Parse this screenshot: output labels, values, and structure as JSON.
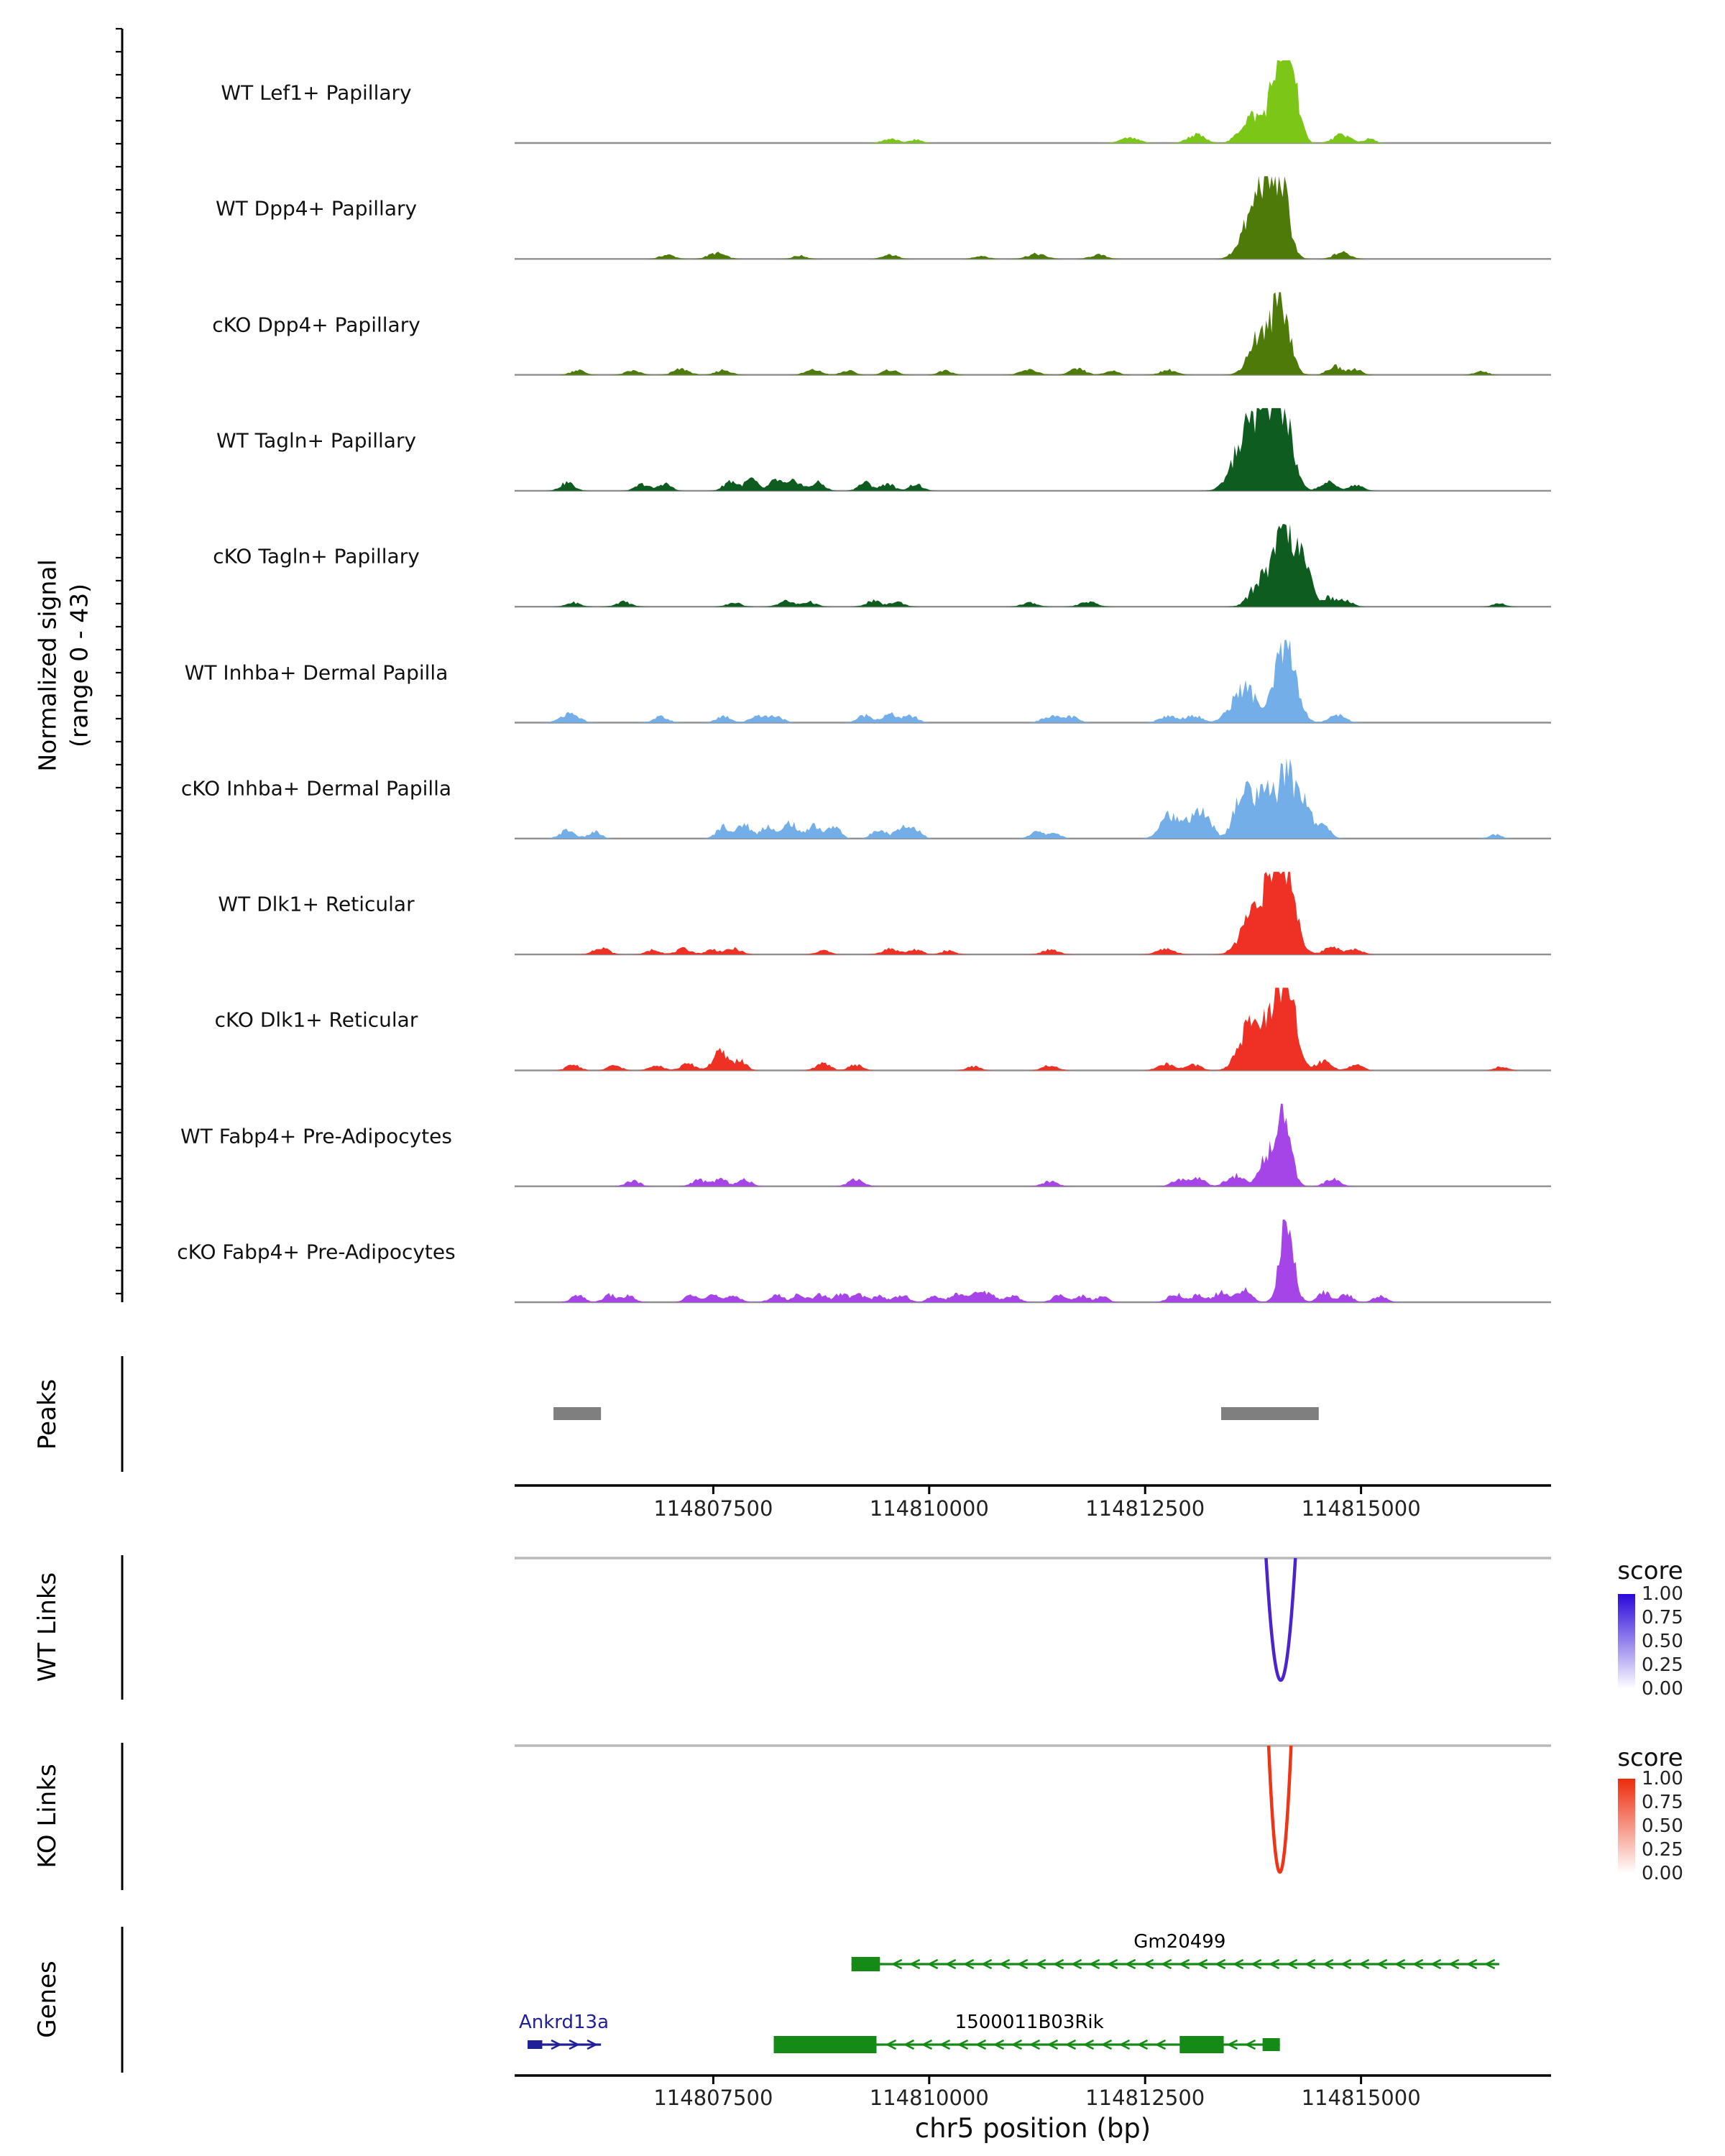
{
  "yaxis": {
    "line1": "Normalized signal",
    "line2": "(range 0 - 43)"
  },
  "sections": {
    "peaks": "Peaks",
    "wt_links": "WT Links",
    "ko_links": "KO Links",
    "genes": "Genes"
  },
  "xaxis": {
    "label": "chr5 position (bp)",
    "domain": [
      114805200,
      114817200
    ],
    "ticks": [
      114807500,
      114810000,
      114812500,
      114815000
    ]
  },
  "legend": {
    "title": "score",
    "tick_labels": [
      "1.00",
      "0.75",
      "0.50",
      "0.25",
      "0.00"
    ],
    "wt_high_color": "#2A08DA",
    "ko_high_color": "#ED2B0C",
    "low_color": "#FFFFFF"
  },
  "chart_data": {
    "type": "area",
    "description": "Genome coverage tracks (scATAC-seq style) with peaks, WT/KO co-accessibility links and gene models",
    "region": "chr5:114805200-114817200",
    "signal_range": [
      0,
      43
    ],
    "peaks_color": "#7F7F7F",
    "peaks": [
      [
        114805650,
        114806200
      ],
      [
        114813380,
        114814510
      ]
    ],
    "links": {
      "wt": {
        "anchor1": 114813900,
        "anchor2": 114814240,
        "score": 1.0,
        "depth": 170,
        "color": "#4B24CE"
      },
      "ko": {
        "anchor1": 114813930,
        "anchor2": 114814190,
        "score": 1.0,
        "depth": 176,
        "color": "#F03418"
      }
    },
    "tracks": [
      {
        "label": "WT Lef1+ Papillary",
        "color": "#7CC618",
        "bumps": [
          [
            114809550,
            130,
            0.05
          ],
          [
            114809850,
            100,
            0.04
          ],
          [
            114812320,
            150,
            0.06
          ],
          [
            114813090,
            140,
            0.1
          ],
          [
            114813730,
            170,
            0.32
          ],
          [
            114814060,
            150,
            1.0
          ],
          [
            114814210,
            110,
            0.62
          ],
          [
            114814780,
            140,
            0.1
          ],
          [
            114815100,
            90,
            0.05
          ]
        ]
      },
      {
        "label": "WT Dpp4+ Papillary",
        "color": "#4E7A0A",
        "bumps": [
          [
            114806970,
            120,
            0.05
          ],
          [
            114807540,
            140,
            0.07
          ],
          [
            114808500,
            110,
            0.04
          ],
          [
            114809550,
            120,
            0.05
          ],
          [
            114810600,
            110,
            0.04
          ],
          [
            114811240,
            150,
            0.06
          ],
          [
            114811960,
            130,
            0.05
          ],
          [
            114813700,
            160,
            0.4
          ],
          [
            114813870,
            120,
            0.78
          ],
          [
            114814070,
            130,
            0.95
          ],
          [
            114814780,
            130,
            0.08
          ]
        ]
      },
      {
        "label": "cKO Dpp4+ Papillary",
        "color": "#4E7A0A",
        "bumps": [
          [
            114805930,
            110,
            0.06
          ],
          [
            114806570,
            120,
            0.05
          ],
          [
            114807130,
            130,
            0.07
          ],
          [
            114807620,
            120,
            0.06
          ],
          [
            114808660,
            130,
            0.06
          ],
          [
            114809060,
            110,
            0.05
          ],
          [
            114809550,
            120,
            0.06
          ],
          [
            114810190,
            110,
            0.05
          ],
          [
            114811160,
            140,
            0.06
          ],
          [
            114811720,
            130,
            0.07
          ],
          [
            114812120,
            110,
            0.05
          ],
          [
            114812770,
            130,
            0.06
          ],
          [
            114813810,
            160,
            0.45
          ],
          [
            114814070,
            140,
            0.92
          ],
          [
            114814700,
            120,
            0.1
          ],
          [
            114814940,
            100,
            0.07
          ],
          [
            114816390,
            100,
            0.05
          ]
        ]
      },
      {
        "label": "WT Tagln+ Papillary",
        "color": "#0E5C20",
        "bumps": [
          [
            114805810,
            110,
            0.1
          ],
          [
            114806680,
            110,
            0.08
          ],
          [
            114806940,
            100,
            0.09
          ],
          [
            114807700,
            110,
            0.12
          ],
          [
            114807940,
            100,
            0.14
          ],
          [
            114808230,
            110,
            0.13
          ],
          [
            114808450,
            100,
            0.12
          ],
          [
            114808710,
            110,
            0.1
          ],
          [
            114809260,
            110,
            0.1
          ],
          [
            114809520,
            100,
            0.09
          ],
          [
            114809840,
            110,
            0.08
          ],
          [
            114813620,
            180,
            0.5
          ],
          [
            114813830,
            160,
            0.8
          ],
          [
            114814080,
            160,
            1.0
          ],
          [
            114814620,
            130,
            0.1
          ],
          [
            114814940,
            110,
            0.07
          ]
        ]
      },
      {
        "label": "cKO Tagln+ Papillary",
        "color": "#0E5C20",
        "bumps": [
          [
            114805880,
            110,
            0.05
          ],
          [
            114806460,
            120,
            0.06
          ],
          [
            114807740,
            110,
            0.05
          ],
          [
            114808340,
            120,
            0.07
          ],
          [
            114808610,
            110,
            0.06
          ],
          [
            114809350,
            120,
            0.07
          ],
          [
            114809630,
            110,
            0.06
          ],
          [
            114811160,
            120,
            0.05
          ],
          [
            114811840,
            130,
            0.06
          ],
          [
            114813860,
            170,
            0.35
          ],
          [
            114814130,
            150,
            0.95
          ],
          [
            114814350,
            110,
            0.45
          ],
          [
            114814620,
            130,
            0.11
          ],
          [
            114814830,
            100,
            0.07
          ],
          [
            114816600,
            100,
            0.04
          ]
        ]
      },
      {
        "label": "WT Inhba+ Dermal Papilla",
        "color": "#73AEE9",
        "bumps": [
          [
            114805840,
            150,
            0.1
          ],
          [
            114806890,
            120,
            0.07
          ],
          [
            114807620,
            120,
            0.08
          ],
          [
            114808020,
            120,
            0.09
          ],
          [
            114808230,
            110,
            0.08
          ],
          [
            114809260,
            120,
            0.09
          ],
          [
            114809550,
            120,
            0.1
          ],
          [
            114809790,
            110,
            0.08
          ],
          [
            114811400,
            130,
            0.08
          ],
          [
            114811640,
            120,
            0.07
          ],
          [
            114812770,
            140,
            0.08
          ],
          [
            114813060,
            130,
            0.09
          ],
          [
            114813650,
            200,
            0.42
          ],
          [
            114814130,
            160,
            1.0
          ],
          [
            114814730,
            130,
            0.1
          ]
        ]
      },
      {
        "label": "cKO Inhba+ Dermal Papilla",
        "color": "#73AEE9",
        "bumps": [
          [
            114805810,
            120,
            0.1
          ],
          [
            114806130,
            100,
            0.08
          ],
          [
            114807620,
            110,
            0.15
          ],
          [
            114807860,
            100,
            0.18
          ],
          [
            114808130,
            110,
            0.16
          ],
          [
            114808390,
            100,
            0.2
          ],
          [
            114808660,
            110,
            0.17
          ],
          [
            114808900,
            100,
            0.15
          ],
          [
            114809420,
            110,
            0.12
          ],
          [
            114809680,
            100,
            0.14
          ],
          [
            114809840,
            100,
            0.12
          ],
          [
            114811240,
            110,
            0.08
          ],
          [
            114811450,
            100,
            0.07
          ],
          [
            114812770,
            140,
            0.3
          ],
          [
            114813060,
            130,
            0.28
          ],
          [
            114813220,
            110,
            0.2
          ],
          [
            114813650,
            150,
            0.6
          ],
          [
            114813900,
            130,
            0.48
          ],
          [
            114814140,
            140,
            0.8
          ],
          [
            114814350,
            110,
            0.42
          ],
          [
            114814570,
            110,
            0.15
          ],
          [
            114816550,
            100,
            0.05
          ]
        ]
      },
      {
        "label": "WT Dlk1+ Reticular",
        "color": "#EE3124",
        "bumps": [
          [
            114806200,
            120,
            0.09
          ],
          [
            114806810,
            110,
            0.06
          ],
          [
            114807160,
            120,
            0.07
          ],
          [
            114807490,
            110,
            0.06
          ],
          [
            114807740,
            120,
            0.07
          ],
          [
            114808770,
            110,
            0.05
          ],
          [
            114809550,
            130,
            0.07
          ],
          [
            114809840,
            110,
            0.06
          ],
          [
            114810220,
            110,
            0.05
          ],
          [
            114811400,
            130,
            0.06
          ],
          [
            114812740,
            140,
            0.07
          ],
          [
            114813730,
            180,
            0.45
          ],
          [
            114813930,
            150,
            0.65
          ],
          [
            114814140,
            150,
            1.0
          ],
          [
            114814670,
            130,
            0.1
          ],
          [
            114814940,
            110,
            0.06
          ]
        ]
      },
      {
        "label": "cKO Dlk1+ Reticular",
        "color": "#EE3124",
        "bumps": [
          [
            114805880,
            110,
            0.07
          ],
          [
            114806360,
            110,
            0.06
          ],
          [
            114806840,
            110,
            0.07
          ],
          [
            114807210,
            120,
            0.08
          ],
          [
            114807580,
            120,
            0.22
          ],
          [
            114807810,
            100,
            0.12
          ],
          [
            114808770,
            120,
            0.08
          ],
          [
            114809150,
            110,
            0.07
          ],
          [
            114810510,
            110,
            0.05
          ],
          [
            114811400,
            120,
            0.06
          ],
          [
            114812740,
            130,
            0.08
          ],
          [
            114813060,
            120,
            0.07
          ],
          [
            114813700,
            170,
            0.48
          ],
          [
            114813930,
            150,
            0.55
          ],
          [
            114814140,
            150,
            0.95
          ],
          [
            114814570,
            120,
            0.12
          ],
          [
            114814940,
            110,
            0.07
          ],
          [
            114816630,
            100,
            0.05
          ]
        ]
      },
      {
        "label": "WT Fabp4+ Pre-Adipocytes",
        "color": "#A545E8",
        "bumps": [
          [
            114806570,
            110,
            0.07
          ],
          [
            114807330,
            110,
            0.08
          ],
          [
            114807580,
            110,
            0.09
          ],
          [
            114807860,
            110,
            0.08
          ],
          [
            114809150,
            120,
            0.09
          ],
          [
            114811400,
            120,
            0.06
          ],
          [
            114812900,
            120,
            0.08
          ],
          [
            114813120,
            110,
            0.09
          ],
          [
            114813540,
            140,
            0.13
          ],
          [
            114813900,
            120,
            0.3
          ],
          [
            114814090,
            120,
            1.0
          ],
          [
            114814670,
            120,
            0.09
          ]
        ]
      },
      {
        "label": "cKO Fabp4+ Pre-Adipocytes",
        "color": "#A545E8",
        "bumps": [
          [
            114805930,
            110,
            0.08
          ],
          [
            114806300,
            100,
            0.09
          ],
          [
            114806520,
            100,
            0.08
          ],
          [
            114807260,
            110,
            0.1
          ],
          [
            114807490,
            100,
            0.09
          ],
          [
            114807740,
            110,
            0.08
          ],
          [
            114808230,
            110,
            0.09
          ],
          [
            114808500,
            100,
            0.1
          ],
          [
            114808740,
            100,
            0.09
          ],
          [
            114808980,
            110,
            0.1
          ],
          [
            114809190,
            100,
            0.09
          ],
          [
            114809420,
            100,
            0.08
          ],
          [
            114809680,
            110,
            0.09
          ],
          [
            114810060,
            100,
            0.08
          ],
          [
            114810320,
            110,
            0.1
          ],
          [
            114810550,
            100,
            0.12
          ],
          [
            114810710,
            100,
            0.1
          ],
          [
            114810970,
            110,
            0.08
          ],
          [
            114811510,
            110,
            0.09
          ],
          [
            114811770,
            100,
            0.08
          ],
          [
            114812000,
            100,
            0.07
          ],
          [
            114812850,
            120,
            0.1
          ],
          [
            114813120,
            110,
            0.09
          ],
          [
            114813380,
            110,
            0.12
          ],
          [
            114813650,
            120,
            0.15
          ],
          [
            114814140,
            110,
            1.0
          ],
          [
            114814570,
            110,
            0.12
          ],
          [
            114814830,
            100,
            0.1
          ],
          [
            114815220,
            100,
            0.08
          ]
        ]
      }
    ],
    "genes": [
      {
        "name": "Gm20499",
        "row": 0,
        "start": 114809100,
        "end": 114816600,
        "strand": "-",
        "color": "#168A16",
        "label_color": "#000000",
        "label_bp": 114812900,
        "exons": [
          [
            114809100,
            114809430,
            20
          ]
        ]
      },
      {
        "name": "Ankrd13a",
        "row": 1,
        "start": 114805350,
        "end": 114806200,
        "strand": "+",
        "color": "#20209B",
        "label_color": "#20209B",
        "label_bp": 114805770,
        "exons": [
          [
            114805350,
            114805520,
            12
          ]
        ]
      },
      {
        "name": "1500011B03Rik",
        "row": 1,
        "start": 114808200,
        "end": 114814060,
        "strand": "-",
        "color": "#168A16",
        "label_color": "#000000",
        "label_bp": 114811160,
        "exons": [
          [
            114808200,
            114809390,
            24
          ],
          [
            114812900,
            114813410,
            24
          ],
          [
            114813860,
            114814060,
            18
          ]
        ]
      }
    ]
  }
}
